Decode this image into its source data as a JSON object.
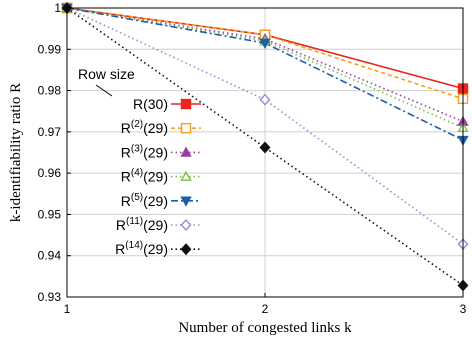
{
  "chart_data": {
    "type": "line",
    "x": [
      1,
      2,
      3
    ],
    "xlabel": "Number of congested links k",
    "ylabel": "k-identifiability ratio R",
    "xlim": [
      1,
      3
    ],
    "ylim": [
      0.93,
      1.0
    ],
    "xticks": [
      "1",
      "2",
      "3"
    ],
    "yticks": [
      "0.93",
      "0.94",
      "0.95",
      "0.96",
      "0.97",
      "0.98",
      "0.99",
      "1"
    ],
    "grid": true,
    "legend": {
      "title": "Row size",
      "placement": "left"
    },
    "series": [
      {
        "name": "R(30)",
        "base": "R",
        "sup": "",
        "tail": "(30)",
        "values": [
          1.0,
          0.9935,
          0.9805
        ],
        "color": "#e8251f",
        "dash": "",
        "marker": "square-filled"
      },
      {
        "name": "R(2)(29)",
        "base": "R",
        "sup": "(2)",
        "tail": "(29)",
        "values": [
          1.0,
          0.9935,
          0.978
        ],
        "color": "#f5a020",
        "dash": "4,3",
        "marker": "square-open"
      },
      {
        "name": "R(3)(29)",
        "base": "R",
        "sup": "(3)",
        "tail": "(29)",
        "values": [
          1.0,
          0.9925,
          0.9725
        ],
        "color": "#9b3ea0",
        "dash": "1.5,3",
        "marker": "triangle-filled"
      },
      {
        "name": "R(4)(29)",
        "base": "R",
        "sup": "(4)",
        "tail": "(29)",
        "values": [
          1.0,
          0.992,
          0.971
        ],
        "color": "#78c04a",
        "dash": "1.5,3",
        "marker": "triangle-open"
      },
      {
        "name": "R(5)(29)",
        "base": "R",
        "sup": "(5)",
        "tail": "(29)",
        "values": [
          1.0,
          0.9915,
          0.968
        ],
        "color": "#1f5fa8",
        "dash": "7,3,2,3",
        "marker": "triangle-down-filled"
      },
      {
        "name": "R(11)(29)",
        "base": "R",
        "sup": "(11)",
        "tail": "(29)",
        "values": [
          1.0,
          0.9778,
          0.9428
        ],
        "color": "#9a8ad0",
        "dash": "1.5,3",
        "marker": "diamond-open"
      },
      {
        "name": "R(14)(29)",
        "base": "R",
        "sup": "(14)",
        "tail": "(29)",
        "values": [
          1.0,
          0.9662,
          0.9328
        ],
        "color": "#111111",
        "dash": "1.5,3",
        "marker": "diamond-filled"
      }
    ]
  }
}
